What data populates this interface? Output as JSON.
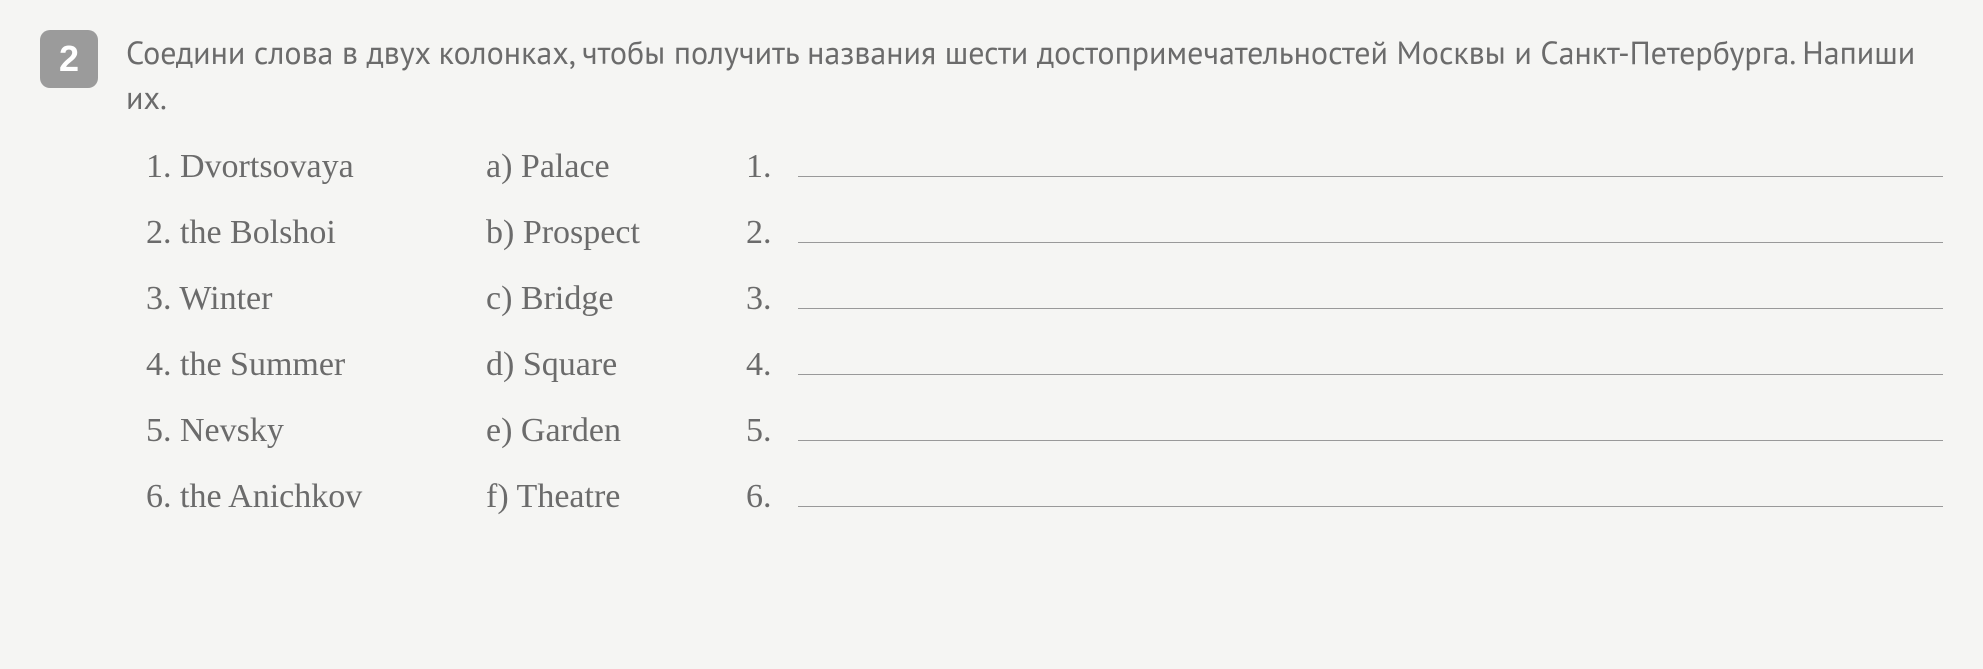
{
  "exercise": {
    "number": "2",
    "instruction": "Соедини слова в двух колонках, чтобы получить названия шести достопримечательностей Москвы и Санкт-Петербурга. Напиши их.",
    "leftColumn": [
      {
        "num": "1.",
        "text": "Dvortsovaya"
      },
      {
        "num": "2.",
        "text": "the Bolshoi"
      },
      {
        "num": "3.",
        "text": "Winter"
      },
      {
        "num": "4.",
        "text": "the Summer"
      },
      {
        "num": "5.",
        "text": "Nevsky"
      },
      {
        "num": "6.",
        "text": "the Anichkov"
      }
    ],
    "rightColumn": [
      {
        "letter": "a)",
        "text": "Palace"
      },
      {
        "letter": "b)",
        "text": "Prospect"
      },
      {
        "letter": "c)",
        "text": "Bridge"
      },
      {
        "letter": "d)",
        "text": "Square"
      },
      {
        "letter": "e)",
        "text": "Garden"
      },
      {
        "letter": "f)",
        "text": "Theatre"
      }
    ],
    "answerNumbers": [
      "1.",
      "2.",
      "3.",
      "4.",
      "5.",
      "6."
    ]
  },
  "colors": {
    "background": "#f5f5f3",
    "text": "#6b6b6b",
    "badge_bg": "#9b9b9b",
    "badge_text": "#ffffff",
    "line": "#999999"
  }
}
